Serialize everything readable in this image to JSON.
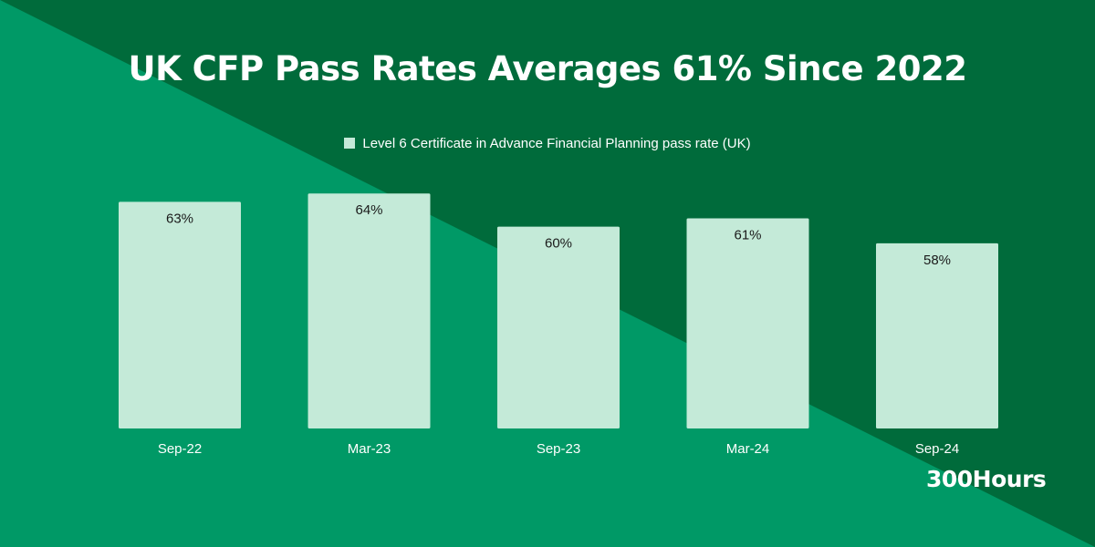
{
  "colors": {
    "dark": "#006b3b",
    "light": "#009966",
    "bar": "#c4ead8",
    "text_dark": "#1a1a1a",
    "text_light": "#ffffff"
  },
  "chart_data": {
    "type": "bar",
    "title": "UK CFP Pass Rates Averages 61% Since 2022",
    "legend": "Level 6 Certificate in Advance Financial Planning pass rate (UK)",
    "legend_position": "top",
    "categories": [
      "Sep-22",
      "Mar-23",
      "Sep-23",
      "Mar-24",
      "Sep-24"
    ],
    "values": [
      63,
      64,
      60,
      61,
      58
    ],
    "data_labels": [
      "63%",
      "64%",
      "60%",
      "61%",
      "58%"
    ],
    "ylim": [
      35.7,
      66
    ],
    "grid": false
  },
  "brand": "300Hours"
}
